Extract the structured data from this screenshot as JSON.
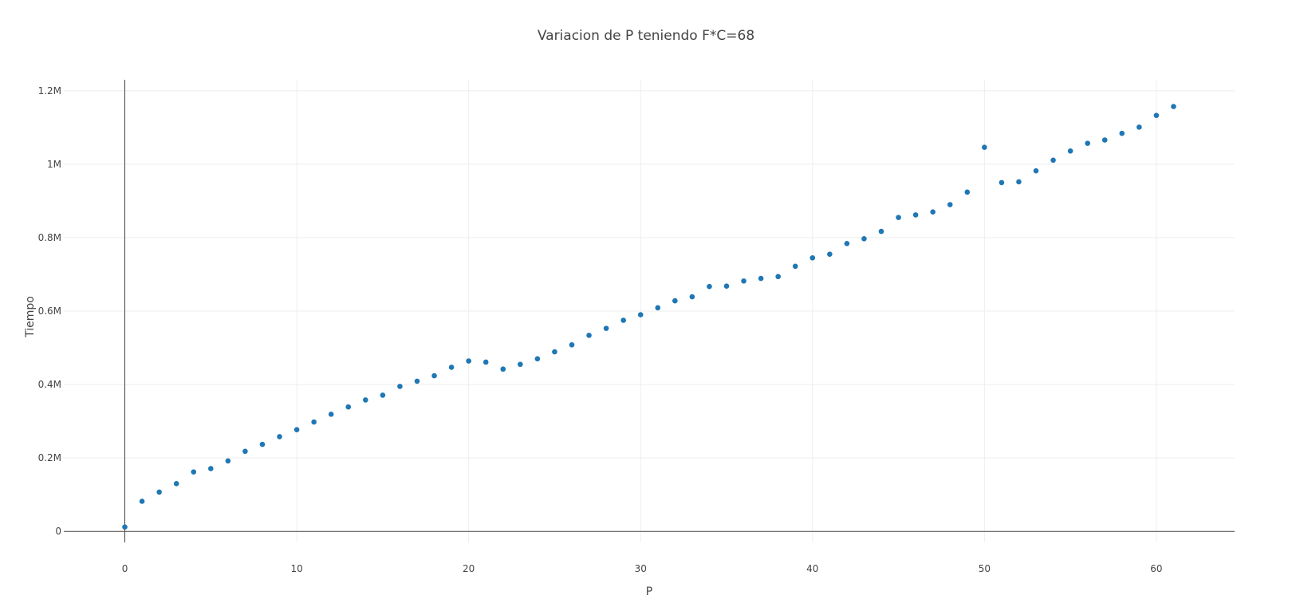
{
  "chart_data": {
    "type": "scatter",
    "title": "Variacion de P teniendo F*C=68",
    "xlabel": "P",
    "ylabel": "Tiempo",
    "xlim": [
      -3.55,
      64.55
    ],
    "ylim": [
      -30000,
      1230000
    ],
    "x_ticks": [
      0,
      10,
      20,
      30,
      40,
      50,
      60
    ],
    "x_tick_labels": [
      "0",
      "10",
      "20",
      "30",
      "40",
      "50",
      "60"
    ],
    "y_ticks": [
      0,
      200000,
      400000,
      600000,
      800000,
      1000000,
      1200000
    ],
    "y_tick_labels": [
      "0",
      "0.2M",
      "0.4M",
      "0.6M",
      "0.8M",
      "1M",
      "1.2M"
    ],
    "grid": true,
    "marker_color": "#1f77b4",
    "series": [
      {
        "x": [
          0,
          1,
          2,
          3,
          4,
          5,
          6,
          7,
          8,
          9,
          10,
          11,
          12,
          13,
          14,
          15,
          16,
          17,
          18,
          19,
          20,
          21,
          22,
          23,
          24,
          25,
          26,
          27,
          28,
          29,
          30,
          31,
          32,
          33,
          34,
          35,
          36,
          37,
          38,
          39,
          40,
          41,
          42,
          43,
          44,
          45,
          46,
          47,
          48,
          49,
          50,
          51,
          52,
          53,
          54,
          55,
          56,
          57,
          58,
          59,
          60,
          61
        ],
        "y": [
          12000,
          82000,
          107000,
          130000,
          162000,
          171000,
          192000,
          218000,
          237000,
          258000,
          277000,
          298000,
          319000,
          339000,
          358000,
          371000,
          395000,
          409000,
          424000,
          447000,
          464000,
          461000,
          442000,
          455000,
          470000,
          489000,
          508000,
          534000,
          553000,
          575000,
          590000,
          609000,
          628000,
          639000,
          667000,
          668000,
          682000,
          689000,
          694000,
          722000,
          745000,
          755000,
          784000,
          797000,
          817000,
          855000,
          862000,
          870000,
          890000,
          924000,
          1046000,
          950000,
          952000,
          982000,
          1011000,
          1036000,
          1057000,
          1066000,
          1084000,
          1101000,
          1133000,
          1157000
        ]
      }
    ]
  }
}
